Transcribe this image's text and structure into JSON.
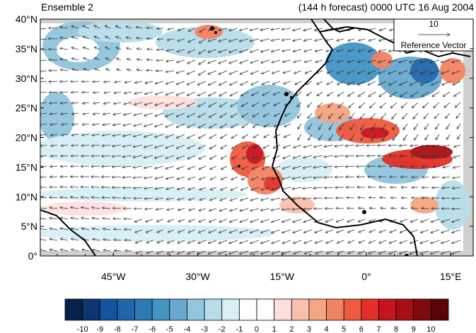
{
  "title_left": "Ensemble 2",
  "title_right": "(144 h forecast) 0000 UTC 16 Aug 2004",
  "map": {
    "lat_labels": [
      "40°N",
      "35°N",
      "30°N",
      "25°N",
      "20°N",
      "15°N",
      "10°N",
      "5°N",
      "0°"
    ],
    "lon_labels": [
      "45°W",
      "30°W",
      "15°W",
      "0°",
      "15°E"
    ],
    "lon_range": [
      -58,
      19
    ],
    "lat_range": [
      0,
      40
    ]
  },
  "reference_vector": {
    "value": "10",
    "label": "Reference Vector"
  },
  "colorbar": {
    "colors": [
      "#08214a",
      "#0a3673",
      "#1453a0",
      "#2166ac",
      "#2c7bb6",
      "#4393c3",
      "#67a9cf",
      "#92c5de",
      "#b7dde9",
      "#d8eff6",
      "#ffffff",
      "#ffffff",
      "#fde0dd",
      "#f9c0b0",
      "#f4a582",
      "#f28262",
      "#ef5a3e",
      "#e23028",
      "#c8141d",
      "#a50f15",
      "#800a0d",
      "#5a0407"
    ],
    "tick_labels": [
      "-10",
      "-9",
      "-8",
      "-7",
      "-6",
      "-5",
      "-4",
      "-3",
      "-2",
      "-1",
      "0",
      "1",
      "2",
      "3",
      "4",
      "5",
      "6",
      "7",
      "8",
      "9",
      "10"
    ]
  }
}
